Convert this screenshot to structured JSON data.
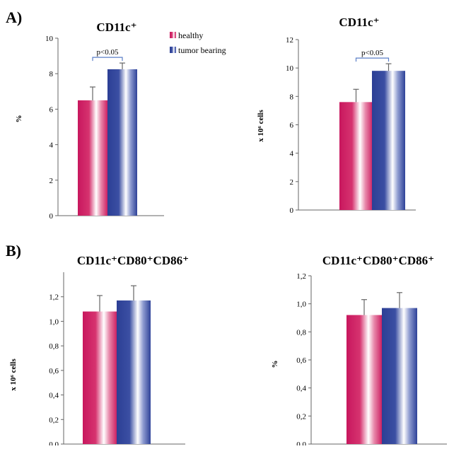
{
  "panels": [
    {
      "letter": "A)"
    },
    {
      "letter": "B)"
    }
  ],
  "legend": {
    "items": [
      {
        "label": "healthy",
        "color": "#d6336f"
      },
      {
        "label": "tumor bearing",
        "color": "#3b4fa3"
      }
    ]
  },
  "chart_data": [
    {
      "type": "bar",
      "title": "CD11c⁺",
      "ylabel": "%",
      "categories": [
        "healthy",
        "tumor bearing"
      ],
      "values": [
        6.5,
        8.25
      ],
      "errors": [
        0.75,
        0.35
      ],
      "ylim": [
        0,
        10
      ],
      "yticks": [
        0,
        2,
        4,
        6,
        8,
        10
      ],
      "ytick_labels": [
        "0",
        "2",
        "4",
        "6",
        "8",
        "10"
      ],
      "annotation": "p<0.05"
    },
    {
      "type": "bar",
      "title": "CD11c⁺",
      "ylabel": "x 10⁶ cells",
      "categories": [
        "healthy",
        "tumor bearing"
      ],
      "values": [
        7.6,
        9.8
      ],
      "errors": [
        0.9,
        0.5
      ],
      "ylim": [
        0,
        12
      ],
      "yticks": [
        0,
        2,
        4,
        6,
        8,
        10,
        12
      ],
      "ytick_labels": [
        "0",
        "2",
        "4",
        "6",
        "8",
        "10",
        "12"
      ],
      "annotation": "p<0.05"
    },
    {
      "type": "bar",
      "title": "CD11c⁺CD80⁺CD86⁺",
      "ylabel": "x 10⁶ cells",
      "categories": [
        "healthy",
        "tumor bearing"
      ],
      "values": [
        1.08,
        1.17
      ],
      "errors": [
        0.13,
        0.12
      ],
      "ylim": [
        0,
        1.4
      ],
      "yticks": [
        0,
        0.2,
        0.4,
        0.6,
        0.8,
        1.0,
        1.2
      ],
      "ytick_labels": [
        "0,0",
        "0,2",
        "0,4",
        "0,6",
        "0,8",
        "1,0",
        "1,2"
      ]
    },
    {
      "type": "bar",
      "title": "CD11c⁺CD80⁺CD86⁺",
      "ylabel": "%",
      "categories": [
        "healthy",
        "tumor bearing"
      ],
      "values": [
        0.92,
        0.97
      ],
      "errors": [
        0.11,
        0.11
      ],
      "ylim": [
        0,
        1.2
      ],
      "yticks": [
        0,
        0.2,
        0.4,
        0.6,
        0.8,
        1.0,
        1.2
      ],
      "ytick_labels": [
        "0,0",
        "0,2",
        "0,4",
        "0,6",
        "0,8",
        "1,0",
        "1,2"
      ]
    }
  ]
}
